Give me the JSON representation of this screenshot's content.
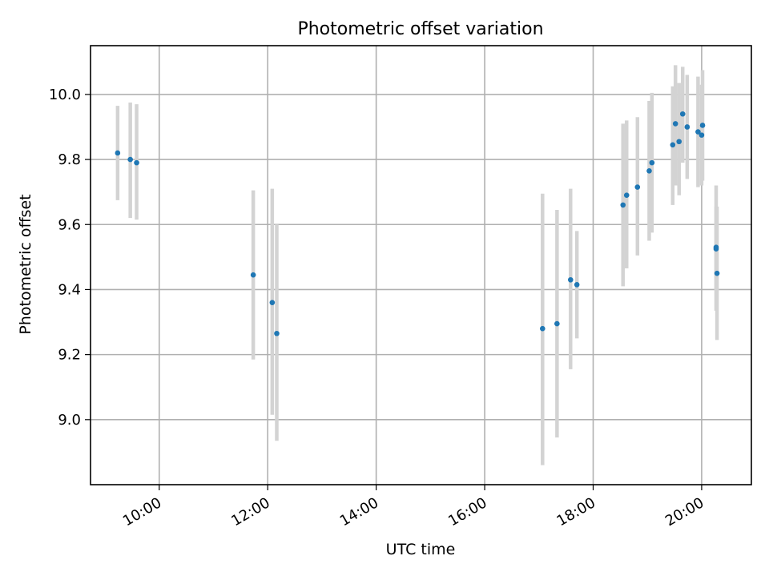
{
  "chart_data": {
    "type": "scatter",
    "title": "Photometric offset variation",
    "xlabel": "UTC time",
    "ylabel": "Photometric offset",
    "x_axis_kind": "time-of-day",
    "xlim": [
      "08:44",
      "20:55"
    ],
    "ylim": [
      8.8,
      10.15
    ],
    "xticks": [
      "10:00",
      "12:00",
      "14:00",
      "16:00",
      "18:00",
      "20:00"
    ],
    "yticks": [
      "9.0",
      "9.2",
      "9.4",
      "9.6",
      "9.8",
      "10.0"
    ],
    "grid": true,
    "legend": "none",
    "colors": {
      "point": "#1f77b4",
      "errorbar": "#d3d3d3",
      "grid": "#b0b0b0"
    },
    "points": [
      {
        "time": "09:14",
        "y": 9.82,
        "err_low": 9.675,
        "err_high": 9.965
      },
      {
        "time": "09:28",
        "y": 9.8,
        "err_low": 9.62,
        "err_high": 9.975
      },
      {
        "time": "09:35",
        "y": 9.79,
        "err_low": 9.615,
        "err_high": 9.97
      },
      {
        "time": "11:44",
        "y": 9.445,
        "err_low": 9.185,
        "err_high": 9.705
      },
      {
        "time": "12:05",
        "y": 9.36,
        "err_low": 9.015,
        "err_high": 9.71
      },
      {
        "time": "12:10",
        "y": 9.265,
        "err_low": 8.935,
        "err_high": 9.6
      },
      {
        "time": "17:04",
        "y": 9.28,
        "err_low": 8.86,
        "err_high": 9.695
      },
      {
        "time": "17:20",
        "y": 9.295,
        "err_low": 8.945,
        "err_high": 9.645
      },
      {
        "time": "17:35",
        "y": 9.43,
        "err_low": 9.155,
        "err_high": 9.71
      },
      {
        "time": "17:42",
        "y": 9.415,
        "err_low": 9.25,
        "err_high": 9.58
      },
      {
        "time": "18:33",
        "y": 9.66,
        "err_low": 9.41,
        "err_high": 9.91
      },
      {
        "time": "18:37",
        "y": 9.69,
        "err_low": 9.465,
        "err_high": 9.92
      },
      {
        "time": "18:49",
        "y": 9.715,
        "err_low": 9.505,
        "err_high": 9.93
      },
      {
        "time": "19:02",
        "y": 9.765,
        "err_low": 9.55,
        "err_high": 9.98
      },
      {
        "time": "19:05",
        "y": 9.79,
        "err_low": 9.575,
        "err_high": 10.005
      },
      {
        "time": "19:28",
        "y": 9.845,
        "err_low": 9.66,
        "err_high": 10.025
      },
      {
        "time": "19:31",
        "y": 9.91,
        "err_low": 9.72,
        "err_high": 10.09
      },
      {
        "time": "19:35",
        "y": 9.855,
        "err_low": 9.69,
        "err_high": 10.035
      },
      {
        "time": "19:39",
        "y": 9.94,
        "err_low": 9.79,
        "err_high": 10.085
      },
      {
        "time": "19:44",
        "y": 9.9,
        "err_low": 9.74,
        "err_high": 10.06
      },
      {
        "time": "19:56",
        "y": 9.885,
        "err_low": 9.715,
        "err_high": 10.055
      },
      {
        "time": "20:00",
        "y": 9.875,
        "err_low": 9.72,
        "err_high": 10.03
      },
      {
        "time": "20:01",
        "y": 9.905,
        "err_low": 9.735,
        "err_high": 10.075
      },
      {
        "time": "20:16",
        "y": 9.525,
        "err_low": 9.335,
        "err_high": 9.72
      },
      {
        "time": "20:16",
        "y": 9.53,
        "err_low": 9.4,
        "err_high": 9.655
      },
      {
        "time": "20:17",
        "y": 9.45,
        "err_low": 9.245,
        "err_high": 9.655
      }
    ]
  }
}
